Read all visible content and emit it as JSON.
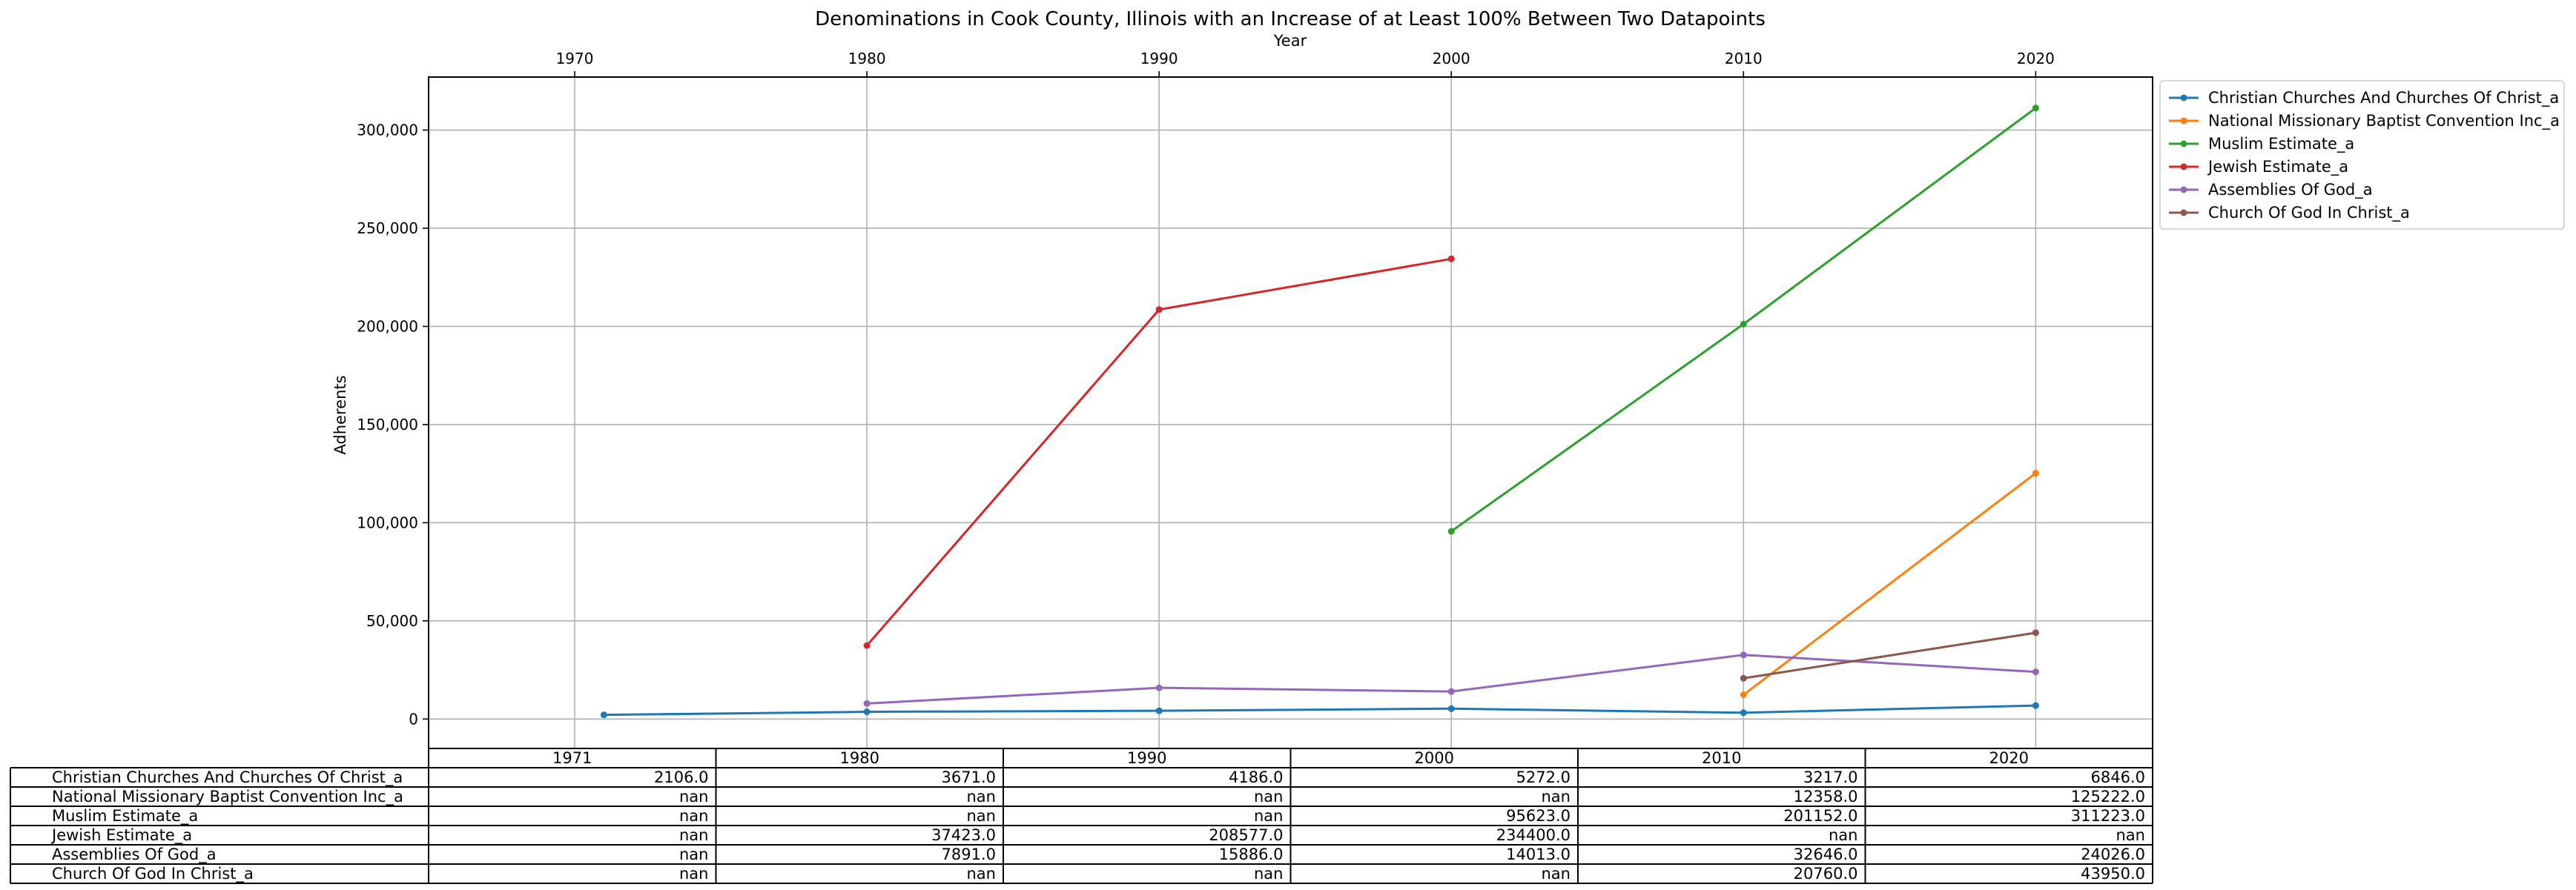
{
  "chart_data": {
    "type": "line",
    "title": "Denominations in Cook County, Illinois with an Increase of at Least 100% Between Two Datapoints",
    "xlabel": "Year",
    "ylabel": "Adherents",
    "xlim": [
      1965,
      2024
    ],
    "ylim": [
      -15000,
      327000
    ],
    "x_ticks": [
      "1970",
      "1980",
      "1990",
      "2000",
      "2010",
      "2020"
    ],
    "x_tick_values": [
      1970,
      1980,
      1990,
      2000,
      2010,
      2020
    ],
    "y_ticks": [
      "0",
      "50,000",
      "100,000",
      "150,000",
      "200,000",
      "250,000",
      "300,000"
    ],
    "y_tick_values": [
      0,
      50000,
      100000,
      150000,
      200000,
      250000,
      300000
    ],
    "grid": true,
    "legend_position": "upper left, outside right of plot",
    "x": [
      1971,
      1980,
      1990,
      2000,
      2010,
      2020
    ],
    "series": [
      {
        "name": "Christian Churches And Churches Of Christ_a",
        "color": "#1f77b4",
        "values": [
          2106,
          3671,
          4186,
          5272,
          3217,
          6846
        ]
      },
      {
        "name": "National Missionary Baptist Convention Inc_a",
        "color": "#ff7f0e",
        "values": [
          null,
          null,
          null,
          null,
          12358,
          125222
        ]
      },
      {
        "name": "Muslim Estimate_a",
        "color": "#2ca02c",
        "values": [
          null,
          null,
          null,
          95623,
          201152,
          311223
        ]
      },
      {
        "name": "Jewish Estimate_a",
        "color": "#d62728",
        "values": [
          null,
          37423,
          208577,
          234400,
          null,
          null
        ]
      },
      {
        "name": "Assemblies Of God_a",
        "color": "#9467bd",
        "values": [
          null,
          7891,
          15886,
          14013,
          32646,
          24026
        ]
      },
      {
        "name": "Church Of God In Christ_a",
        "color": "#8c564b",
        "values": [
          null,
          null,
          null,
          null,
          20760,
          43950
        ]
      }
    ],
    "table": {
      "columns": [
        "1971",
        "1980",
        "1990",
        "2000",
        "2010",
        "2020"
      ],
      "rows": [
        {
          "label": "Christian Churches And Churches Of Christ_a",
          "cells": [
            "2106.0",
            "3671.0",
            "4186.0",
            "5272.0",
            "3217.0",
            "6846.0"
          ]
        },
        {
          "label": "National Missionary Baptist Convention Inc_a",
          "cells": [
            "nan",
            "nan",
            "nan",
            "nan",
            "12358.0",
            "125222.0"
          ]
        },
        {
          "label": "Muslim Estimate_a",
          "cells": [
            "nan",
            "nan",
            "nan",
            "95623.0",
            "201152.0",
            "311223.0"
          ]
        },
        {
          "label": "Jewish Estimate_a",
          "cells": [
            "nan",
            "37423.0",
            "208577.0",
            "234400.0",
            "nan",
            "nan"
          ]
        },
        {
          "label": "Assemblies Of God_a",
          "cells": [
            "nan",
            "7891.0",
            "15886.0",
            "14013.0",
            "32646.0",
            "24026.0"
          ]
        },
        {
          "label": "Church Of God In Christ_a",
          "cells": [
            "nan",
            "nan",
            "nan",
            "nan",
            "20760.0",
            "43950.0"
          ]
        }
      ]
    }
  }
}
